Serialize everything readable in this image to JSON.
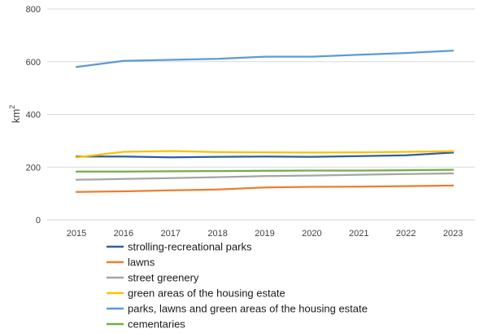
{
  "chart_data": {
    "type": "line",
    "x": [
      2015,
      2016,
      2017,
      2018,
      2019,
      2020,
      2021,
      2022,
      2023
    ],
    "ylabel_base": "km",
    "ylabel_exp": "2",
    "ylim": [
      0,
      800
    ],
    "yticks": [
      0,
      200,
      400,
      600,
      800
    ],
    "grid": "horizontal",
    "legend_position": "bottom",
    "series": [
      {
        "name": "strolling-recreational parks",
        "color": "#2e5e9e",
        "values": [
          240,
          240,
          237,
          239,
          240,
          239,
          242,
          245,
          255
        ]
      },
      {
        "name": "lawns",
        "color": "#ed7d31",
        "values": [
          106,
          108,
          112,
          115,
          123,
          125,
          126,
          128,
          130
        ]
      },
      {
        "name": "street greenery",
        "color": "#a5a5a5",
        "values": [
          152,
          155,
          158,
          162,
          166,
          168,
          171,
          174,
          176
        ]
      },
      {
        "name": "green areas of the housing estate",
        "color": "#ffc000",
        "values": [
          237,
          258,
          261,
          257,
          256,
          255,
          256,
          258,
          260
        ]
      },
      {
        "name": "parks, lawns and green areas of the housing estate",
        "color": "#5b9bd5",
        "values": [
          580,
          603,
          607,
          611,
          619,
          619,
          626,
          633,
          642
        ]
      },
      {
        "name": "cementaries",
        "color": "#70ad47",
        "values": [
          183,
          183,
          184,
          185,
          186,
          187,
          187,
          188,
          190
        ]
      }
    ]
  }
}
